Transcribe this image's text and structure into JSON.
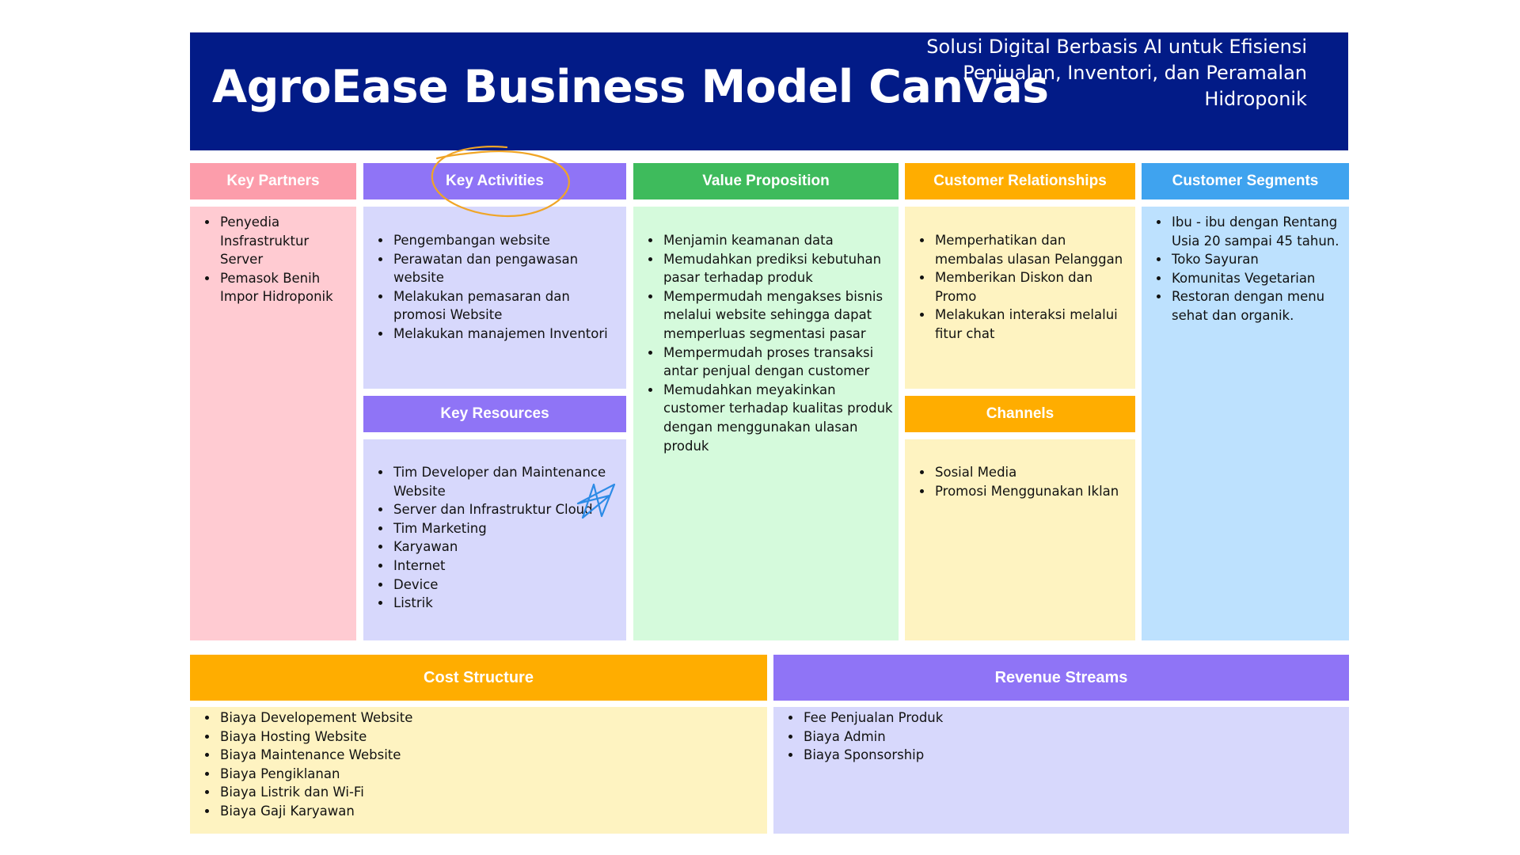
{
  "header": {
    "title": "AgroEase Business Model Canvas",
    "subtitle": "Solusi Digital Berbasis AI untuk Efisiensi Penjualan, Inventori, dan Peramalan Hidroponik"
  },
  "colors": {
    "header_bg": "#021b87",
    "key_partners_head": "#fc9dab",
    "key_partners_body": "#ffcbd2",
    "purple_head": "#8f74f6",
    "purple_body": "#d7d8fc",
    "green_head": "#3ebb5c",
    "green_body": "#d5fadc",
    "orange_head": "#ffad00",
    "yellow_body": "#fef3c1",
    "blue_head": "#3fa3ef",
    "blue_body": "#bde1fe",
    "annotation_orange": "#f0a526",
    "annotation_blue": "#2d8be6"
  },
  "sections": {
    "key_partners": {
      "label": "Key Partners",
      "items": [
        "Penyedia Insfrastruktur Server",
        "Pemasok Benih Impor Hidroponik"
      ]
    },
    "key_activities": {
      "label": "Key Activities",
      "items": [
        "Pengembangan website",
        "Perawatan dan pengawasan website",
        "Melakukan pemasaran dan promosi Website",
        "Melakukan manajemen Inventori"
      ]
    },
    "key_resources": {
      "label": "Key Resources",
      "items": [
        "Tim Developer dan Maintenance Website",
        "Server dan Infrastruktur Cloud",
        "Tim Marketing",
        "Karyawan",
        "Internet",
        "Device",
        "Listrik"
      ]
    },
    "value_proposition": {
      "label": "Value Proposition",
      "items": [
        "Menjamin keamanan data",
        "Memudahkan prediksi kebutuhan pasar terhadap produk",
        "Mempermudah mengakses bisnis melalui website sehingga dapat memperluas segmentasi pasar",
        "Mempermudah proses transaksi antar penjual dengan customer",
        "Memudahkan meyakinkan customer terhadap kualitas produk dengan menggunakan ulasan produk"
      ]
    },
    "customer_relationships": {
      "label": "Customer Relationships",
      "items": [
        "Memperhatikan dan membalas ulasan Pelanggan",
        "Memberikan Diskon dan Promo",
        "Melakukan interaksi melalui fitur chat"
      ]
    },
    "channels": {
      "label": "Channels",
      "items": [
        "Sosial Media",
        "Promosi Menggunakan Iklan"
      ]
    },
    "customer_segments": {
      "label": "Customer Segments",
      "items": [
        "Ibu - ibu dengan Rentang Usia 20 sampai 45 tahun.",
        "Toko Sayuran",
        "Komunitas Vegetarian",
        "Restoran dengan menu sehat dan organik."
      ]
    },
    "cost_structure": {
      "label": "Cost Structure",
      "items": [
        "Biaya Developement Website",
        "Biaya Hosting Website",
        "Biaya Maintenance Website",
        "Biaya Pengiklanan",
        "Biaya Listrik dan Wi-Fi",
        "Biaya Gaji Karyawan"
      ]
    },
    "revenue_streams": {
      "label": "Revenue Streams",
      "items": [
        "Fee Penjualan Produk",
        "Biaya Admin",
        "Biaya Sponsorship"
      ]
    }
  }
}
